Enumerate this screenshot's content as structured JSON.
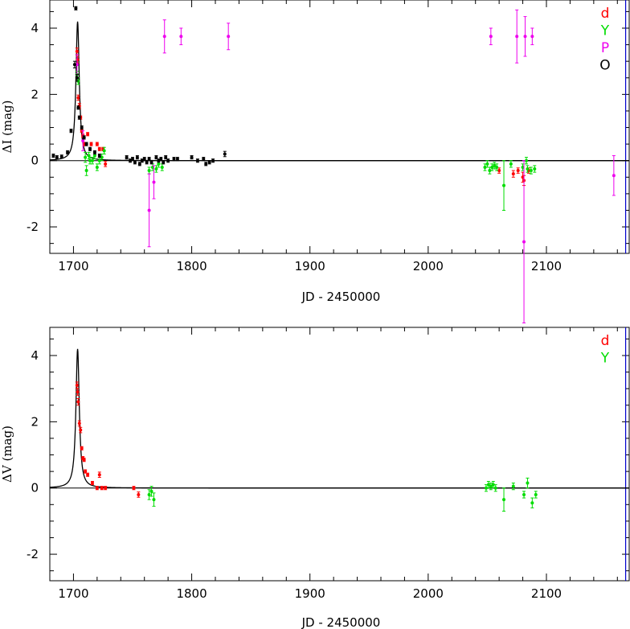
{
  "chart_data": [
    {
      "type": "scatter",
      "panel": "top",
      "xlabel": "JD - 2450000",
      "ylabel": "ΔI (mag)",
      "xlim": [
        1680,
        2170
      ],
      "ylim": [
        -2.8,
        4.85
      ],
      "x_ticks": [
        1700,
        1800,
        1900,
        2000,
        2100
      ],
      "y_ticks": [
        -2,
        0,
        2,
        4
      ],
      "baseline": 0,
      "vertical_marker_x": 2167,
      "vertical_marker_color": "#0000cc",
      "legend_position": "top-right",
      "model_curve": {
        "peak_x": 1703.5,
        "peak_y": 4.2,
        "tE": 1.7,
        "baseline": 0,
        "color": "#000000"
      },
      "series": [
        {
          "name": "d",
          "color": "#ff0000",
          "points": [
            [
              1703,
              3.3,
              0.1
            ],
            [
              1703.5,
              3.05,
              0.1
            ],
            [
              1704,
              1.9,
              0.08
            ],
            [
              1705,
              1.65,
              0.08
            ],
            [
              1706,
              1.3,
              0.05
            ],
            [
              1707,
              0.9,
              0.05
            ],
            [
              1708,
              0.75,
              0.05
            ],
            [
              1709,
              0.5,
              0.05
            ],
            [
              1712,
              0.8,
              0.05
            ],
            [
              1715,
              0.5,
              0.05
            ],
            [
              1720,
              0.5,
              0.05
            ],
            [
              1722,
              0.35,
              0.05
            ],
            [
              1725,
              0.35,
              0.05
            ],
            [
              1727,
              -0.1,
              0.08
            ],
            [
              2060,
              -0.3,
              0.08
            ],
            [
              2072,
              -0.4,
              0.1
            ],
            [
              2076,
              -0.3,
              0.08
            ],
            [
              2080,
              -0.5,
              0.15
            ],
            [
              2081,
              -0.6,
              0.15
            ],
            [
              2085,
              -0.3,
              0.08
            ]
          ]
        },
        {
          "name": "Y",
          "color": "#00dd00",
          "points": [
            [
              1703,
              2.6,
              0.1
            ],
            [
              1704,
              2.4,
              0.1
            ],
            [
              1710,
              0.1,
              0.15
            ],
            [
              1711,
              -0.3,
              0.15
            ],
            [
              1713,
              0.15,
              0.1
            ],
            [
              1714,
              0.0,
              0.1
            ],
            [
              1716,
              0.0,
              0.1
            ],
            [
              1718,
              0.15,
              0.1
            ],
            [
              1720,
              -0.2,
              0.1
            ],
            [
              1722,
              0.0,
              0.1
            ],
            [
              1724,
              0.1,
              0.1
            ],
            [
              1726,
              0.3,
              0.1
            ],
            [
              1764,
              -0.3,
              0.1
            ],
            [
              1767,
              -0.2,
              0.1
            ],
            [
              1770,
              -0.25,
              0.1
            ],
            [
              1772,
              -0.1,
              0.1
            ],
            [
              1775,
              -0.2,
              0.1
            ],
            [
              2048,
              -0.2,
              0.1
            ],
            [
              2050,
              -0.1,
              0.1
            ],
            [
              2052,
              -0.3,
              0.1
            ],
            [
              2054,
              -0.2,
              0.1
            ],
            [
              2056,
              -0.15,
              0.1
            ],
            [
              2058,
              -0.2,
              0.1
            ],
            [
              2064,
              -0.75,
              0.75
            ],
            [
              2070,
              -0.1,
              0.1
            ],
            [
              2080,
              -0.2,
              0.1
            ],
            [
              2083,
              0.0,
              0.1
            ],
            [
              2084,
              -0.25,
              0.1
            ],
            [
              2087,
              -0.3,
              0.1
            ],
            [
              2090,
              -0.25,
              0.1
            ]
          ]
        },
        {
          "name": "P",
          "color": "#ee00ee",
          "points": [
            [
              1703,
              2.9,
              0.3
            ],
            [
              1708,
              0.6,
              0.3
            ],
            [
              1764,
              -1.5,
              1.1
            ],
            [
              1768,
              -0.65,
              0.5
            ],
            [
              1777,
              3.75,
              0.5
            ],
            [
              1791,
              3.75,
              0.25
            ],
            [
              1831,
              3.75,
              0.4
            ],
            [
              2053,
              3.75,
              0.25
            ],
            [
              2075,
              3.75,
              0.8
            ],
            [
              2081,
              -2.45,
              2.45
            ],
            [
              2082,
              3.75,
              0.6
            ],
            [
              2088,
              3.75,
              0.25
            ],
            [
              2157,
              -0.45,
              0.6
            ]
          ]
        },
        {
          "name": "O",
          "color": "#000000",
          "points": [
            [
              1683,
              0.15,
              0.05
            ],
            [
              1686,
              0.1,
              0.05
            ],
            [
              1690,
              0.12,
              0.05
            ],
            [
              1695,
              0.25,
              0.05
            ],
            [
              1698,
              0.9,
              0.05
            ],
            [
              1701,
              2.9,
              0.1
            ],
            [
              1702,
              4.6,
              0.05
            ],
            [
              1703,
              2.5,
              0.1
            ],
            [
              1704,
              1.6,
              0.05
            ],
            [
              1705,
              1.3,
              0.05
            ],
            [
              1707,
              1.0,
              0.05
            ],
            [
              1709,
              0.7,
              0.05
            ],
            [
              1711,
              0.5,
              0.05
            ],
            [
              1714,
              0.35,
              0.05
            ],
            [
              1718,
              0.25,
              0.05
            ],
            [
              1722,
              0.15,
              0.05
            ],
            [
              1745,
              0.1,
              0.05
            ],
            [
              1748,
              0.0,
              0.05
            ],
            [
              1750,
              0.05,
              0.05
            ],
            [
              1752,
              -0.05,
              0.05
            ],
            [
              1754,
              0.1,
              0.05
            ],
            [
              1756,
              -0.1,
              0.05
            ],
            [
              1758,
              0.0,
              0.05
            ],
            [
              1760,
              0.05,
              0.05
            ],
            [
              1762,
              -0.05,
              0.05
            ],
            [
              1764,
              0.05,
              0.05
            ],
            [
              1766,
              -0.05,
              0.05
            ],
            [
              1770,
              0.1,
              0.05
            ],
            [
              1772,
              0.0,
              0.05
            ],
            [
              1774,
              0.05,
              0.05
            ],
            [
              1776,
              -0.05,
              0.05
            ],
            [
              1778,
              0.1,
              0.05
            ],
            [
              1780,
              0.0,
              0.05
            ],
            [
              1785,
              0.05,
              0.05
            ],
            [
              1788,
              0.05,
              0.05
            ],
            [
              1800,
              0.1,
              0.05
            ],
            [
              1805,
              0.0,
              0.05
            ],
            [
              1810,
              0.05,
              0.05
            ],
            [
              1812,
              -0.1,
              0.05
            ],
            [
              1815,
              -0.05,
              0.05
            ],
            [
              1818,
              0.0,
              0.05
            ],
            [
              1828,
              0.2,
              0.08
            ]
          ]
        }
      ]
    },
    {
      "type": "scatter",
      "panel": "bottom",
      "xlabel": "JD - 2450000",
      "ylabel": "ΔV (mag)",
      "xlim": [
        1680,
        2170
      ],
      "ylim": [
        -2.8,
        4.85
      ],
      "x_ticks": [
        1700,
        1800,
        1900,
        2000,
        2100
      ],
      "y_ticks": [
        -2,
        0,
        2,
        4
      ],
      "baseline": 0,
      "vertical_marker_x": 2167,
      "vertical_marker_color": "#0000cc",
      "legend_position": "top-right",
      "model_curve": {
        "peak_x": 1703.5,
        "peak_y": 4.2,
        "tE": 1.7,
        "baseline": 0,
        "color": "#000000"
      },
      "series": [
        {
          "name": "d",
          "color": "#ff0000",
          "points": [
            [
              1703,
              3.1,
              0.1
            ],
            [
              1703.5,
              2.9,
              0.1
            ],
            [
              1704,
              2.6,
              0.1
            ],
            [
              1705,
              1.95,
              0.08
            ],
            [
              1706,
              1.75,
              0.08
            ],
            [
              1707,
              1.2,
              0.05
            ],
            [
              1708,
              0.9,
              0.05
            ],
            [
              1709,
              0.85,
              0.05
            ],
            [
              1710,
              0.5,
              0.05
            ],
            [
              1712,
              0.4,
              0.05
            ],
            [
              1716,
              0.15,
              0.05
            ],
            [
              1720,
              0.0,
              0.05
            ],
            [
              1722,
              0.4,
              0.08
            ],
            [
              1724,
              0.0,
              0.05
            ],
            [
              1727,
              0.0,
              0.05
            ],
            [
              1751,
              0.0,
              0.05
            ],
            [
              1755,
              -0.2,
              0.08
            ]
          ]
        },
        {
          "name": "Y",
          "color": "#00dd00",
          "points": [
            [
              1764,
              -0.2,
              0.15
            ],
            [
              1766,
              -0.1,
              0.15
            ],
            [
              1768,
              -0.35,
              0.2
            ],
            [
              2049,
              0.0,
              0.1
            ],
            [
              2051,
              0.1,
              0.1
            ],
            [
              2053,
              0.05,
              0.1
            ],
            [
              2055,
              0.1,
              0.1
            ],
            [
              2057,
              0.0,
              0.1
            ],
            [
              2064,
              -0.35,
              0.35
            ],
            [
              2072,
              0.05,
              0.1
            ],
            [
              2081,
              -0.2,
              0.1
            ],
            [
              2084,
              0.15,
              0.15
            ],
            [
              2088,
              -0.45,
              0.15
            ],
            [
              2091,
              -0.2,
              0.1
            ]
          ]
        }
      ]
    }
  ]
}
